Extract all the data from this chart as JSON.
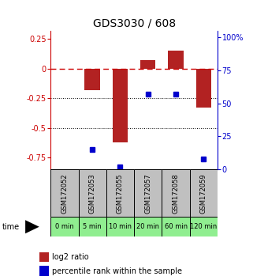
{
  "title": "GDS3030 / 608",
  "samples": [
    "GSM172052",
    "GSM172053",
    "GSM172055",
    "GSM172057",
    "GSM172058",
    "GSM172059"
  ],
  "time_labels": [
    "0 min",
    "5 min",
    "10 min",
    "20 min",
    "60 min",
    "120 min"
  ],
  "log2_ratio": [
    0.0,
    -0.18,
    -0.62,
    0.07,
    0.15,
    -0.33
  ],
  "percentile_rank": [
    null,
    15,
    2,
    57,
    57,
    8
  ],
  "ylim_left": [
    -0.85,
    0.32
  ],
  "ylim_right": [
    0,
    105
  ],
  "bar_color": "#B22222",
  "dot_color": "#0000CC",
  "zero_line_color": "#CC0000",
  "grid_color": "#000000",
  "bg_color": "#FFFFFF",
  "sample_box_color": "#C0C0C0",
  "time_box_color": "#90EE90",
  "left_tick_color": "#CC0000",
  "right_tick_color": "#0000CC",
  "left_yticks": [
    -0.75,
    -0.5,
    -0.25,
    0,
    0.25
  ],
  "left_yticklabels": [
    "-0.75",
    "-0.5",
    "-0.25",
    "0",
    "0.25"
  ],
  "right_yticks": [
    0,
    25,
    50,
    75,
    100
  ],
  "right_yticklabels": [
    "0",
    "25",
    "50",
    "75",
    "100%"
  ]
}
